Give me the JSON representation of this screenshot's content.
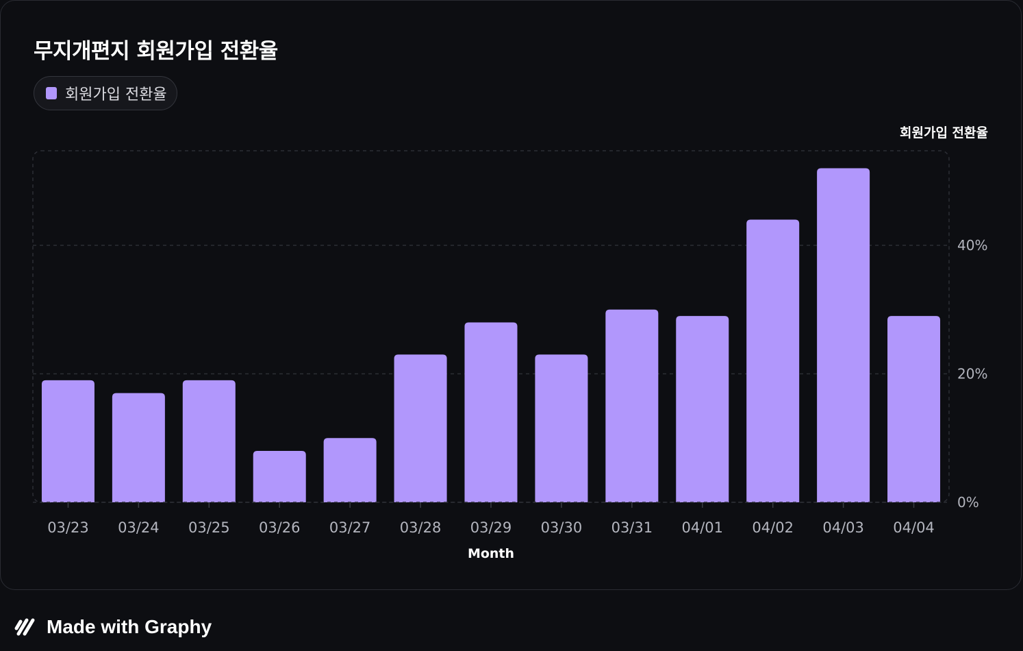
{
  "title": "무지개편지 회원가입 전환율",
  "legend": {
    "label": "회원가입 전환율",
    "color": "#b197fc"
  },
  "footer": {
    "text": "Made with Graphy",
    "icon": "graphy-logo-icon"
  },
  "chart_data": {
    "type": "bar",
    "title": "무지개편지 회원가입 전환율",
    "xlabel": "Month",
    "ylabel": "회원가입 전환율",
    "categories": [
      "03/23",
      "03/24",
      "03/25",
      "03/26",
      "03/27",
      "03/28",
      "03/29",
      "03/30",
      "03/31",
      "04/01",
      "04/02",
      "04/03",
      "04/04"
    ],
    "series": [
      {
        "name": "회원가입 전환율",
        "values": [
          19,
          17,
          19,
          8,
          10,
          23,
          28,
          23,
          30,
          29,
          44,
          52,
          29
        ],
        "color": "#b197fc"
      }
    ],
    "yticks": [
      0,
      20,
      40
    ],
    "ytick_labels": [
      "0%",
      "20%",
      "40%"
    ],
    "ylim": [
      0,
      55
    ],
    "grid": true,
    "y_axis_position": "right",
    "legend_position": "top-left"
  }
}
